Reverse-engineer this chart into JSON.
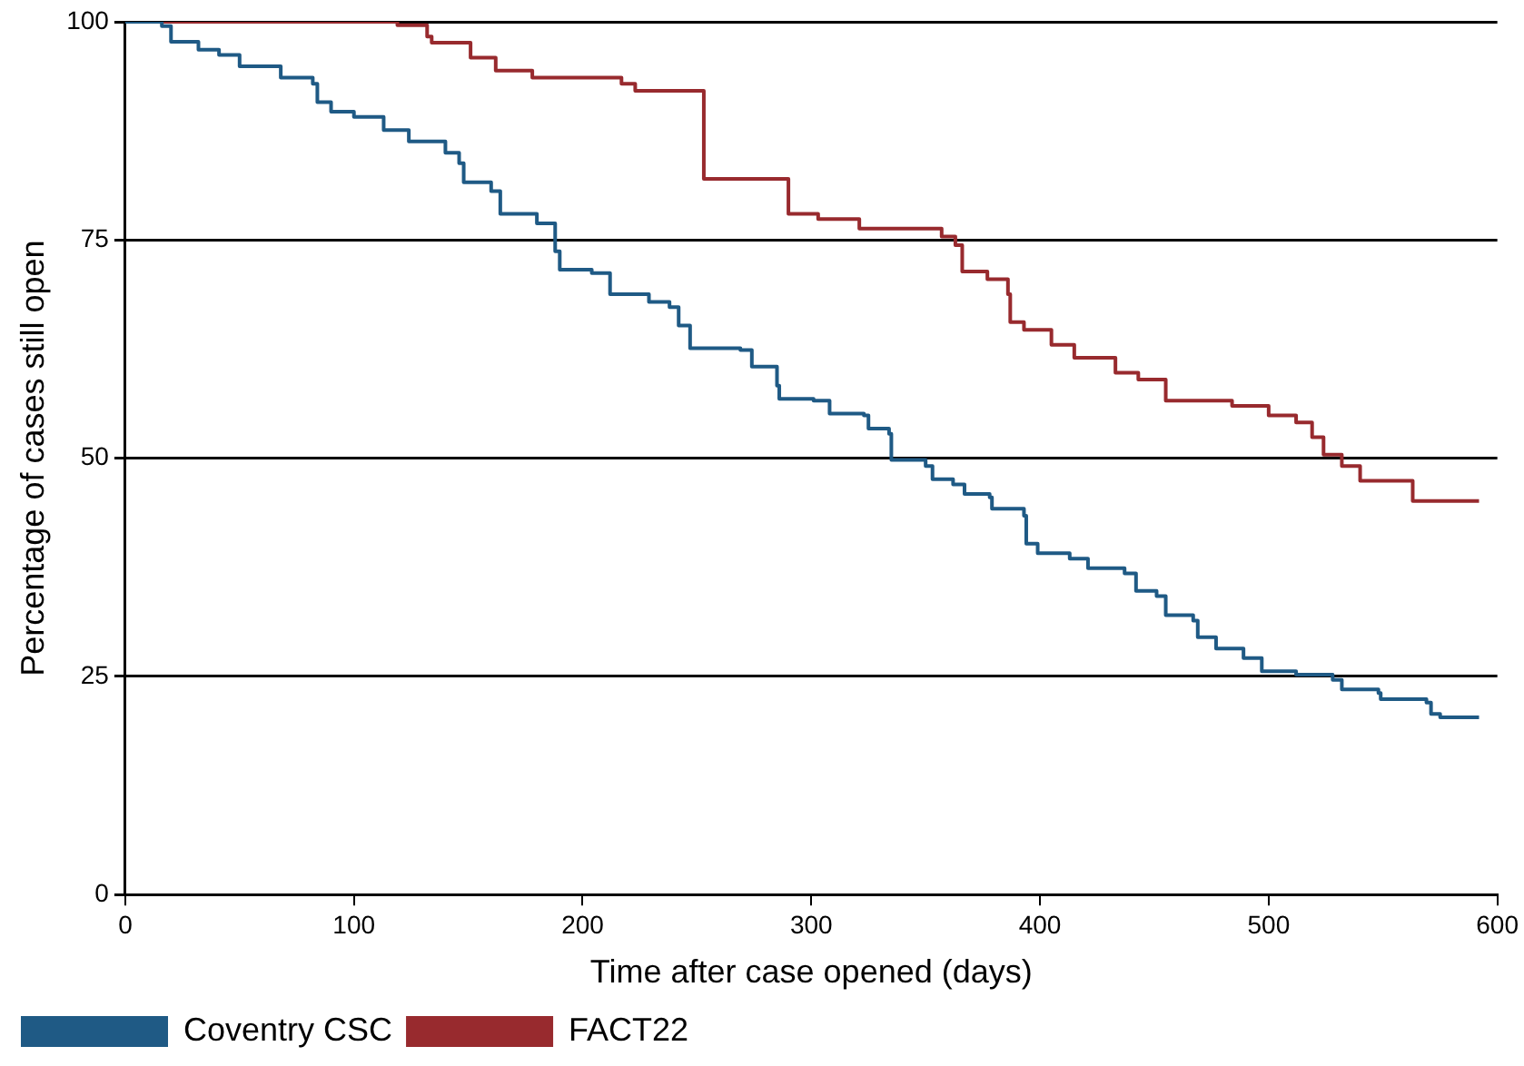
{
  "chart_data": {
    "type": "step",
    "xlabel": "Time after case opened (days)",
    "ylabel": "Percentage of cases still open",
    "xlim": [
      0,
      600
    ],
    "xticks": [
      0,
      100,
      200,
      300,
      400,
      500,
      600
    ],
    "ylim": [
      0,
      100
    ],
    "yticks": [
      0,
      25,
      50,
      75,
      100
    ],
    "grid": "y",
    "legend": "bottom",
    "marker": "none",
    "series": [
      {
        "name": "Coventry CSC",
        "color": "#1f5a85",
        "x": [
          0,
          16,
          20,
          32,
          41,
          50,
          68,
          82,
          84,
          90,
          100,
          113,
          124,
          140,
          146,
          148,
          160,
          164,
          180,
          188,
          190,
          204,
          212,
          229,
          238,
          242,
          247,
          269,
          274,
          285,
          286,
          301,
          308,
          323,
          325,
          334,
          335,
          350,
          353,
          362,
          367,
          378,
          379,
          393,
          394,
          399,
          413,
          421,
          437,
          442,
          451,
          455,
          467,
          469,
          477,
          489,
          497,
          512,
          528,
          532,
          548,
          549,
          569,
          571,
          575,
          592
        ],
        "values": [
          100,
          99.5,
          97.7,
          96.8,
          96.2,
          94.9,
          93.6,
          92.9,
          90.8,
          89.7,
          89.1,
          87.6,
          86.3,
          85,
          83.8,
          81.6,
          80.6,
          78,
          76.9,
          73.7,
          71.6,
          71.2,
          68.8,
          67.9,
          67.3,
          65.2,
          62.6,
          62.4,
          60.5,
          58.3,
          56.8,
          56.6,
          55.1,
          54.9,
          53.4,
          52.8,
          49.8,
          49.1,
          47.6,
          47,
          45.9,
          45.5,
          44.2,
          43.4,
          40.2,
          39.1,
          38.5,
          37.4,
          36.8,
          34.8,
          34.2,
          32,
          31.4,
          29.5,
          28.2,
          27.1,
          25.6,
          25.2,
          24.6,
          23.5,
          23.1,
          22.4,
          22,
          20.7,
          20.3,
          20.3
        ]
      },
      {
        "name": "FACT22",
        "color": "#982a2e",
        "x": [
          0,
          119,
          132,
          134,
          151,
          162,
          178,
          217,
          223,
          253,
          290,
          303,
          321,
          357,
          363,
          366,
          377,
          386,
          387,
          393,
          405,
          415,
          433,
          443,
          455,
          484,
          500,
          512,
          519,
          524,
          532,
          540,
          563,
          592
        ],
        "values": [
          100,
          99.6,
          98.3,
          97.6,
          95.9,
          94.4,
          93.6,
          92.9,
          92.1,
          82,
          78,
          77.4,
          76.3,
          75.4,
          74.4,
          71.4,
          70.5,
          68.8,
          65.6,
          64.7,
          63,
          61.5,
          59.8,
          59,
          56.6,
          56,
          54.9,
          54.1,
          52.4,
          50.4,
          49.1,
          47.4,
          45.1,
          45.1
        ]
      }
    ]
  }
}
